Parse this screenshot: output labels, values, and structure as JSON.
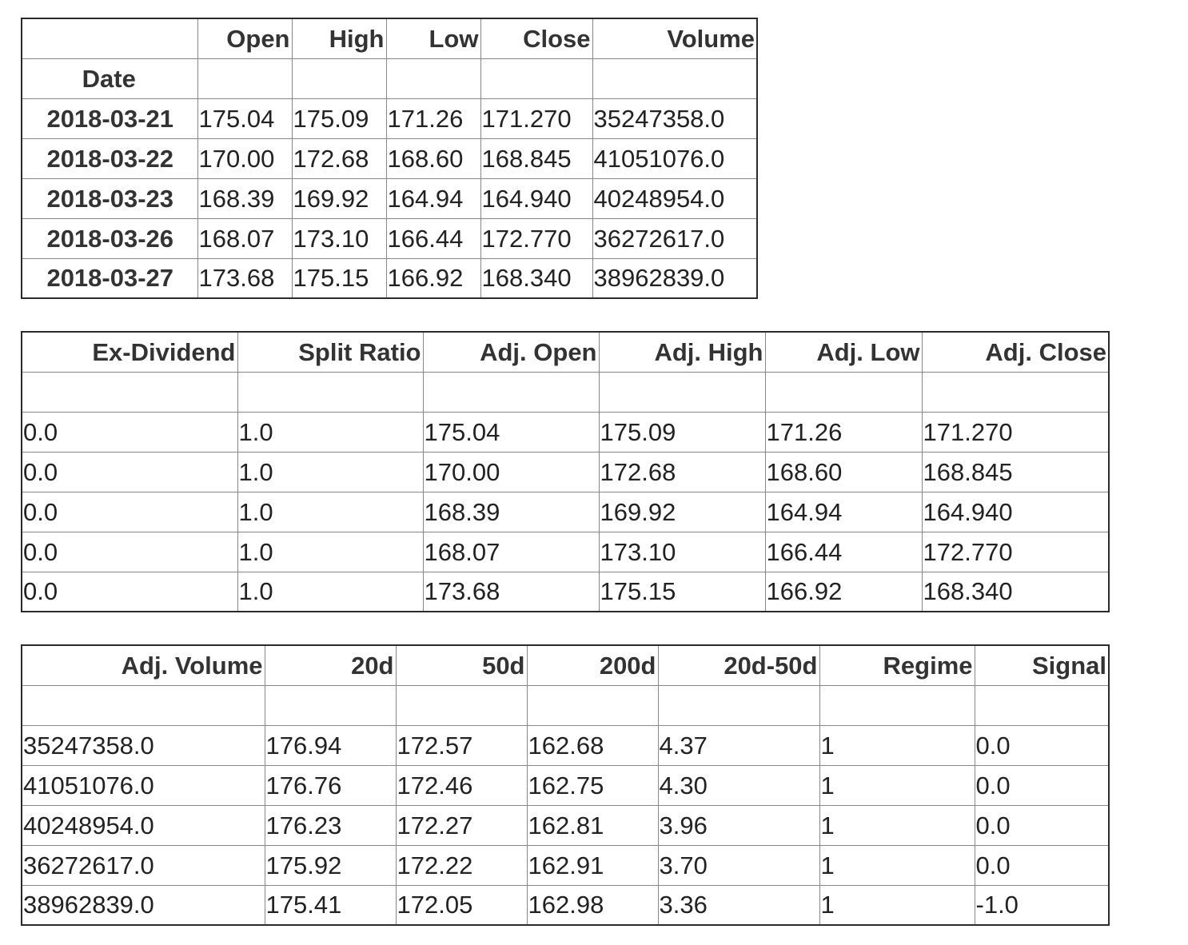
{
  "table1": {
    "index_header": "",
    "index_name": "Date",
    "columns": [
      "Open",
      "High",
      "Low",
      "Close",
      "Volume"
    ],
    "rows": [
      {
        "date": "2018-03-21",
        "cells": [
          "175.04",
          "175.09",
          "171.26",
          "171.270",
          "35247358.0"
        ]
      },
      {
        "date": "2018-03-22",
        "cells": [
          "170.00",
          "172.68",
          "168.60",
          "168.845",
          "41051076.0"
        ]
      },
      {
        "date": "2018-03-23",
        "cells": [
          "168.39",
          "169.92",
          "164.94",
          "164.940",
          "40248954.0"
        ]
      },
      {
        "date": "2018-03-26",
        "cells": [
          "168.07",
          "173.10",
          "166.44",
          "172.770",
          "36272617.0"
        ]
      },
      {
        "date": "2018-03-27",
        "cells": [
          "173.68",
          "175.15",
          "166.92",
          "168.340",
          "38962839.0"
        ]
      }
    ]
  },
  "table2": {
    "columns": [
      "Ex-Dividend",
      "Split Ratio",
      "Adj. Open",
      "Adj. High",
      "Adj. Low",
      "Adj. Close"
    ],
    "rows": [
      [
        "0.0",
        "1.0",
        "175.04",
        "175.09",
        "171.26",
        "171.270"
      ],
      [
        "0.0",
        "1.0",
        "170.00",
        "172.68",
        "168.60",
        "168.845"
      ],
      [
        "0.0",
        "1.0",
        "168.39",
        "169.92",
        "164.94",
        "164.940"
      ],
      [
        "0.0",
        "1.0",
        "168.07",
        "173.10",
        "166.44",
        "172.770"
      ],
      [
        "0.0",
        "1.0",
        "173.68",
        "175.15",
        "166.92",
        "168.340"
      ]
    ]
  },
  "table3": {
    "columns": [
      "Adj. Volume",
      "20d",
      "50d",
      "200d",
      "20d-50d",
      "Regime",
      "Signal"
    ],
    "rows": [
      [
        "35247358.0",
        "176.94",
        "172.57",
        "162.68",
        "4.37",
        "1",
        "0.0"
      ],
      [
        "41051076.0",
        "176.76",
        "172.46",
        "162.75",
        "4.30",
        "1",
        "0.0"
      ],
      [
        "40248954.0",
        "176.23",
        "172.27",
        "162.81",
        "3.96",
        "1",
        "0.0"
      ],
      [
        "36272617.0",
        "175.92",
        "172.22",
        "162.91",
        "3.70",
        "1",
        "0.0"
      ],
      [
        "38962839.0",
        "175.41",
        "172.05",
        "162.98",
        "3.36",
        "1",
        "-1.0"
      ]
    ]
  }
}
